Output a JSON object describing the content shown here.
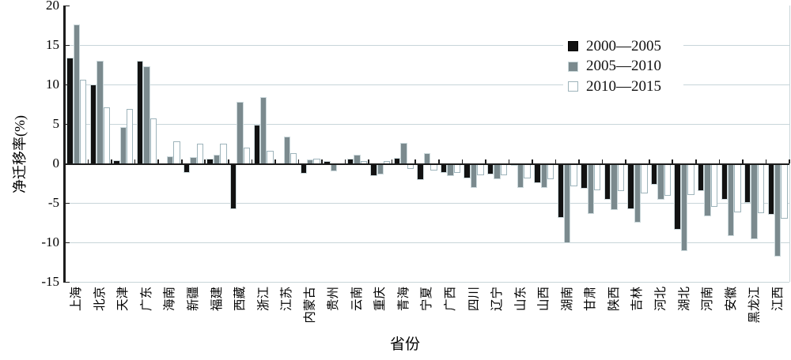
{
  "chart_data": {
    "type": "bar",
    "title": "",
    "xlabel": "省份",
    "ylabel": "净迁移率(%)",
    "ylim": [
      -15,
      20
    ],
    "yticks": [
      20,
      15,
      10,
      5,
      0,
      -5,
      -10,
      -15
    ],
    "grid": "horizontal light gridlines every 5 units",
    "legend_position": "upper right inside plot",
    "categories": [
      "上海",
      "北京",
      "天津",
      "广东",
      "海南",
      "新疆",
      "福建",
      "西藏",
      "浙江",
      "江苏",
      "内蒙古",
      "贵州",
      "云南",
      "重庆",
      "青海",
      "宁夏",
      "广西",
      "四川",
      "辽宁",
      "山东",
      "山西",
      "湖南",
      "甘肃",
      "陕西",
      "吉林",
      "河北",
      "湖北",
      "河南",
      "安徽",
      "黑龙江",
      "江西"
    ],
    "series": [
      {
        "name": "2000—2005",
        "fill": "#121212",
        "edge": "#ccd9dc",
        "values": [
          13.4,
          10.0,
          0.4,
          13.0,
          0,
          -1.1,
          0.6,
          -5.7,
          4.9,
          0,
          -1.2,
          0.3,
          0.6,
          -1.5,
          0.7,
          -2.0,
          -1.1,
          -1.8,
          -1.3,
          -0.2,
          -2.4,
          -6.8,
          -3.1,
          -4.5,
          -5.7,
          -2.6,
          -8.3,
          -3.4,
          -4.5,
          -4.9,
          -6.4
        ]
      },
      {
        "name": "2005—2010",
        "fill": "#7b8a8e",
        "edge": "#ccd9dc",
        "values": [
          17.6,
          13.0,
          4.6,
          12.3,
          0.9,
          0.8,
          1.1,
          7.8,
          8.4,
          3.4,
          0.5,
          -0.9,
          1.1,
          -1.3,
          2.6,
          1.3,
          -1.5,
          -3.0,
          -1.9,
          -3.0,
          -3.0,
          -10.0,
          -6.3,
          -5.8,
          -7.4,
          -4.5,
          -11.0,
          -6.6,
          -9.1,
          -9.5,
          -11.7
        ]
      },
      {
        "name": "2010—2015",
        "fill": "#ffffff",
        "edge": "#9eb4bb",
        "values": [
          10.6,
          7.1,
          6.9,
          5.7,
          2.8,
          2.5,
          2.5,
          2.0,
          1.6,
          1.3,
          0.6,
          0,
          0.3,
          0.3,
          -0.6,
          -0.8,
          -1.1,
          -1.4,
          -1.4,
          -1.8,
          -1.9,
          -2.8,
          -3.3,
          -3.4,
          -3.7,
          -4.0,
          -3.9,
          -5.4,
          -6.1,
          -6.2,
          -6.9
        ]
      }
    ],
    "colors": {
      "axis": "#1c1c1c",
      "gridline": "#c8d5d9",
      "background": "#ffffff"
    }
  }
}
